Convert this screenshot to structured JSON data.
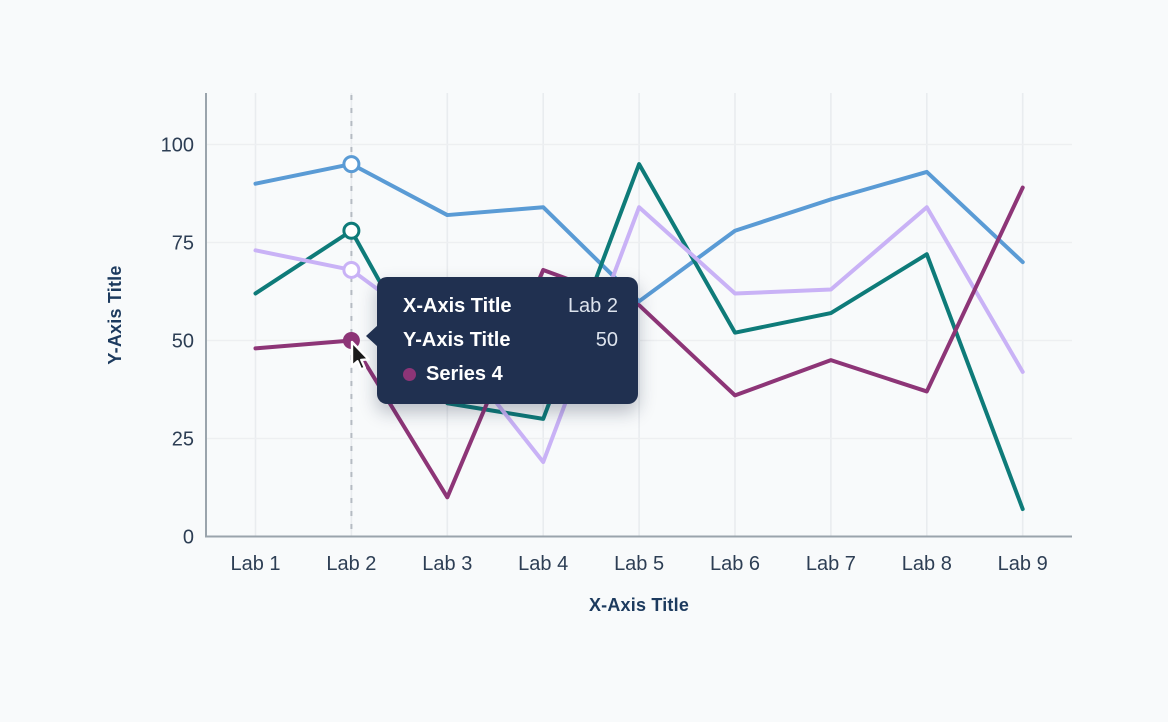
{
  "chart_data": {
    "type": "line",
    "title": "",
    "xlabel": "X-Axis Title",
    "ylabel": "Y-Axis Title",
    "categories": [
      "Lab 1",
      "Lab 2",
      "Lab 3",
      "Lab 4",
      "Lab 5",
      "Lab 6",
      "Lab 7",
      "Lab 8",
      "Lab 9"
    ],
    "yticks": [
      0,
      25,
      50,
      75,
      100
    ],
    "ylim": [
      0,
      113
    ],
    "grid": true,
    "legend_position": "none",
    "series": [
      {
        "id": "series-1",
        "color": "#5a9bd5",
        "values": [
          90,
          95,
          82,
          84,
          60,
          78,
          86,
          93,
          70
        ]
      },
      {
        "id": "series-2",
        "color": "#0e7b79",
        "values": [
          62,
          78,
          34,
          30,
          95,
          52,
          57,
          72,
          7
        ]
      },
      {
        "id": "series-3",
        "color": "#c9b2f6",
        "values": [
          73,
          68,
          50,
          19,
          84,
          62,
          63,
          84,
          42
        ]
      },
      {
        "id": "series-4",
        "name": "Series 4",
        "color": "#8d3577",
        "values": [
          48,
          50,
          10,
          68,
          59,
          36,
          45,
          37,
          89
        ]
      }
    ],
    "hover": {
      "category": "Lab 2",
      "category_index": 1,
      "active_series": "Series 4",
      "active_series_index": 3,
      "value": 50
    }
  },
  "axes": {
    "x_title": "X-Axis Title",
    "y_title": "Y-Axis Title"
  },
  "tooltip": {
    "rows": [
      {
        "label": "X-Axis Title",
        "value": "Lab 2"
      },
      {
        "label": "Y-Axis Title",
        "value": "50"
      },
      {
        "label": "Series 4",
        "value": "",
        "dot_color": "#8d3577"
      }
    ]
  }
}
